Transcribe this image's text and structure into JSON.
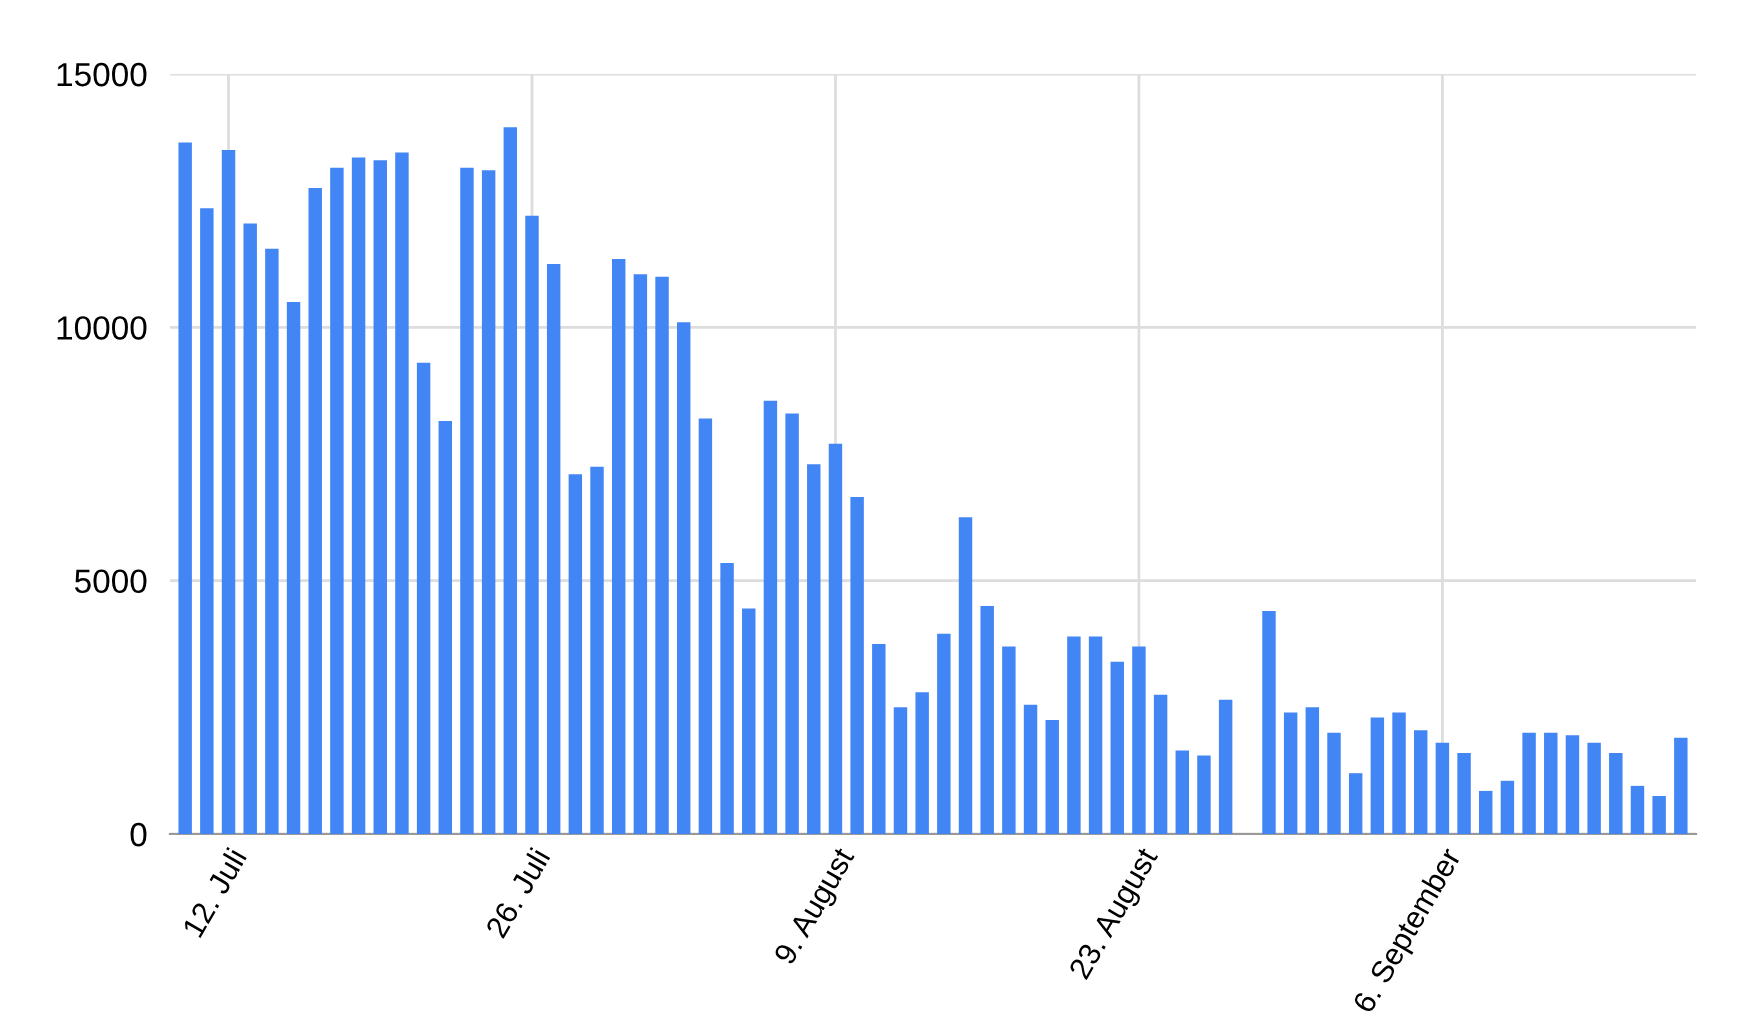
{
  "chart_data": {
    "type": "bar",
    "color": "#4285f4",
    "categories": [
      null,
      null,
      "12. Juli",
      null,
      null,
      null,
      null,
      null,
      null,
      null,
      null,
      null,
      null,
      null,
      null,
      null,
      "26. Juli",
      null,
      null,
      null,
      null,
      null,
      null,
      null,
      null,
      null,
      null,
      null,
      null,
      null,
      "9. August",
      null,
      null,
      null,
      null,
      null,
      null,
      null,
      null,
      null,
      null,
      null,
      null,
      null,
      "23. August",
      null,
      null,
      null,
      null,
      null,
      null,
      null,
      null,
      null,
      null,
      null,
      null,
      null,
      "6. September",
      null,
      null,
      null,
      null,
      null,
      null,
      null,
      null,
      null,
      null,
      null
    ],
    "values": [
      13650,
      12350,
      13500,
      12050,
      11550,
      10500,
      12750,
      13150,
      13350,
      13300,
      13450,
      9300,
      8150,
      13150,
      13100,
      13950,
      12200,
      11250,
      7100,
      7250,
      11350,
      11050,
      11000,
      10100,
      8200,
      5350,
      4450,
      8550,
      8300,
      7300,
      7700,
      6650,
      3750,
      2500,
      2800,
      3950,
      6250,
      4500,
      3700,
      2550,
      2250,
      3900,
      3900,
      3400,
      3700,
      2750,
      1650,
      1550,
      2650,
      null,
      4400,
      2400,
      2500,
      2000,
      1200,
      2300,
      2400,
      2050,
      1800,
      1600,
      850,
      1050,
      2000,
      2000,
      1950,
      1800,
      1600,
      950,
      750,
      1900
    ],
    "ylim": [
      0,
      15000
    ],
    "yticks": [
      0,
      5000,
      10000,
      15000
    ],
    "grid": true
  }
}
